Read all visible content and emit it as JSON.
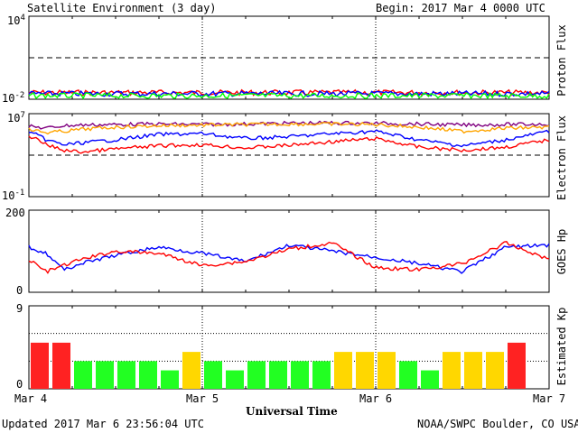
{
  "header": {
    "title": "Satellite Environment (3 day)",
    "begin": "Begin:  2017 Mar 4 0000 UTC"
  },
  "footer": {
    "updated": "Updated 2017 Mar  6 23:56:04 UTC",
    "credit": "NOAA/SWPC Boulder, CO USA"
  },
  "xaxis": {
    "label": "Universal Time",
    "ticks": [
      "Mar 4",
      "Mar 5",
      "Mar 6",
      "Mar 7"
    ]
  },
  "panels": {
    "proton": {
      "ylabel": "Proton Flux",
      "ytick_top_base": "10",
      "ytick_top_exp": "4",
      "ytick_bottom_base": "10",
      "ytick_bottom_exp": "-2"
    },
    "electron": {
      "ylabel": "Electron Flux",
      "ytick_top_base": "10",
      "ytick_top_exp": "7",
      "ytick_bottom_base": "10",
      "ytick_bottom_exp": "-1"
    },
    "goes": {
      "ylabel": "GOES Hp",
      "ytick_top": "200",
      "ytick_bottom": "0"
    },
    "kp": {
      "ylabel": "Estimated Kp",
      "ytick_top": "9",
      "ytick_bottom": "0"
    }
  },
  "colors": {
    "red": "#ff0000",
    "blue": "#0000ff",
    "green": "#00ff00",
    "orange": "#ffa500",
    "purple": "#800080",
    "kp_low": "#22ff22",
    "kp_mid": "#ffd700",
    "kp_high": "#ff2222"
  },
  "chart_data": [
    {
      "type": "line",
      "panel": "proton",
      "y_scale": "log",
      "ylim": [
        0.01,
        10000
      ],
      "threshold": 10,
      "x": [
        0,
        0.5,
        1,
        1.5,
        2,
        2.5,
        3
      ],
      "series": [
        {
          "color": "red",
          "values": [
            0.03,
            0.03,
            0.03,
            0.03,
            0.03,
            0.03,
            0.03
          ]
        },
        {
          "color": "blue",
          "values": [
            0.025,
            0.025,
            0.025,
            0.025,
            0.025,
            0.025,
            0.025
          ]
        },
        {
          "color": "green",
          "values": [
            0.018,
            0.018,
            0.018,
            0.018,
            0.018,
            0.018,
            0.018
          ]
        }
      ]
    },
    {
      "type": "line",
      "panel": "electron",
      "y_scale": "log",
      "ylim": [
        0.1,
        10000000
      ],
      "threshold": 1000,
      "x": [
        0,
        0.1,
        0.2,
        0.3,
        0.5,
        0.75,
        1,
        1.25,
        1.5,
        1.75,
        2,
        2.25,
        2.5,
        2.75,
        3
      ],
      "series": [
        {
          "color": "purple",
          "values": [
            600000,
            400000,
            700000,
            800000,
            900000,
            1000000,
            900000,
            1000000,
            1200000,
            1300000,
            1200000,
            1000000,
            800000,
            900000,
            1000000
          ]
        },
        {
          "color": "orange",
          "values": [
            300000,
            150000,
            200000,
            300000,
            500000,
            700000,
            800000,
            900000,
            1000000,
            1000000,
            900000,
            500000,
            200000,
            400000,
            500000
          ]
        },
        {
          "color": "blue",
          "values": [
            200000,
            30000,
            10000,
            15000,
            30000,
            100000,
            120000,
            40000,
            60000,
            120000,
            200000,
            30000,
            8000,
            30000,
            200000
          ]
        },
        {
          "color": "red",
          "values": [
            80000,
            10000,
            3000,
            2000,
            4000,
            8000,
            10000,
            5000,
            9000,
            20000,
            40000,
            6000,
            3000,
            6000,
            30000
          ]
        }
      ]
    },
    {
      "type": "line",
      "panel": "goes",
      "ylim": [
        0,
        200
      ],
      "x": [
        0,
        0.1,
        0.2,
        0.3,
        0.5,
        0.75,
        1,
        1.25,
        1.5,
        1.75,
        2,
        2.25,
        2.5,
        2.75,
        3
      ],
      "series": [
        {
          "color": "blue",
          "values": [
            110,
            95,
            55,
            70,
            90,
            110,
            95,
            75,
            115,
            100,
            85,
            70,
            50,
            110,
            115
          ]
        },
        {
          "color": "red",
          "values": [
            80,
            50,
            65,
            80,
            100,
            95,
            65,
            75,
            105,
            120,
            60,
            55,
            70,
            120,
            80
          ]
        }
      ]
    },
    {
      "type": "bar",
      "panel": "kp",
      "ylim": [
        0,
        9
      ],
      "categories": [
        "Mar 4 00",
        "Mar 4 03",
        "Mar 4 06",
        "Mar 4 09",
        "Mar 4 12",
        "Mar 4 15",
        "Mar 4 18",
        "Mar 4 21",
        "Mar 5 00",
        "Mar 5 03",
        "Mar 5 06",
        "Mar 5 09",
        "Mar 5 12",
        "Mar 5 15",
        "Mar 5 18",
        "Mar 5 21",
        "Mar 6 00",
        "Mar 6 03",
        "Mar 6 06",
        "Mar 6 09",
        "Mar 6 12",
        "Mar 6 15",
        "Mar 6 18",
        "Mar 6 21"
      ],
      "values": [
        5,
        5,
        3,
        3,
        3,
        3,
        2,
        4,
        3,
        2,
        3,
        3,
        3,
        3,
        4,
        4,
        4,
        3,
        2,
        4,
        4,
        4,
        5,
        0
      ]
    }
  ]
}
